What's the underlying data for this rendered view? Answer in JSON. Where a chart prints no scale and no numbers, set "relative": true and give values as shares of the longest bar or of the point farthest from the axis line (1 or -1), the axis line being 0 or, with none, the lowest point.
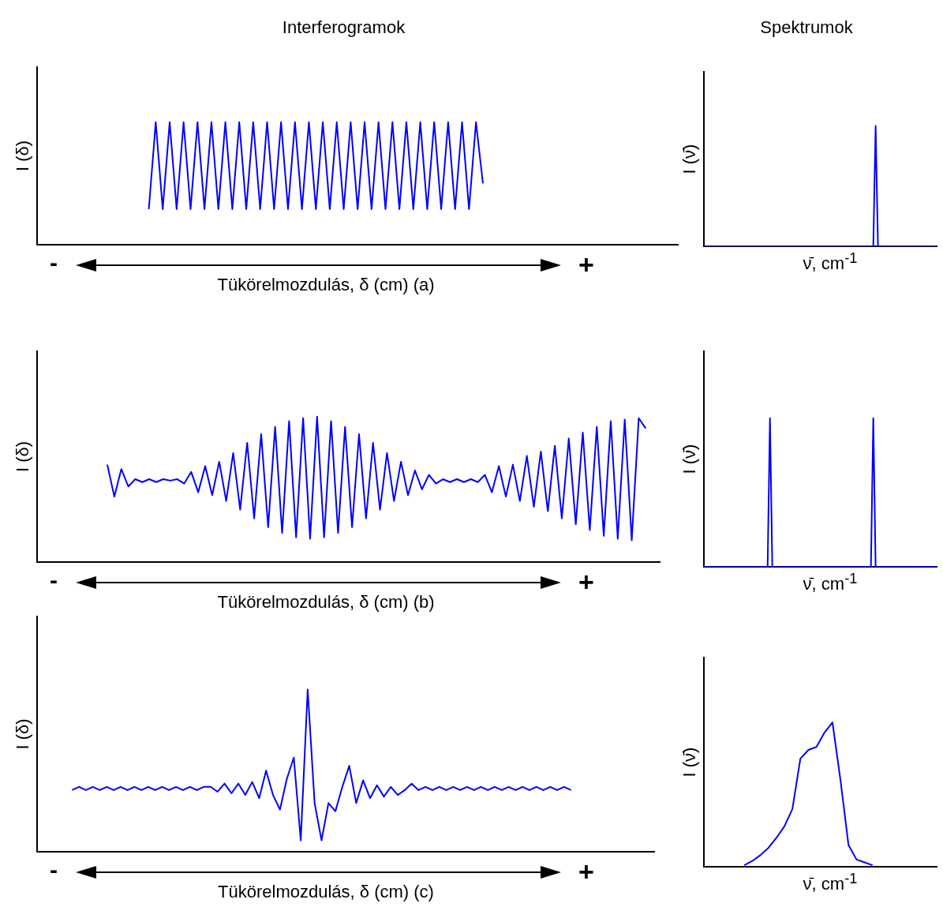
{
  "chart_data": [
    {
      "type": "line",
      "title": "Interferogramok",
      "ylabel": "I (δ)",
      "xlabel": "Tükörelmozdulás, δ (cm) (a)",
      "annotations": [
        "-",
        "+"
      ],
      "relative": true,
      "color": "#0000ff",
      "categories": [
        null,
        null,
        null,
        null,
        null,
        null,
        null,
        null,
        null,
        null,
        null,
        null,
        null,
        null,
        null,
        null,
        null,
        null,
        null,
        null,
        null,
        null,
        null,
        null,
        null,
        null,
        null,
        null,
        null,
        null,
        null,
        null,
        null,
        null,
        null,
        null,
        null,
        null,
        null,
        null,
        null,
        null,
        null,
        null,
        null,
        null,
        null,
        null,
        null,
        null,
        null,
        null,
        null,
        null,
        null,
        null,
        null,
        null,
        null,
        null,
        null,
        null,
        null,
        null,
        null,
        null,
        null,
        null,
        null,
        null,
        null,
        null,
        null,
        null,
        null,
        null,
        null,
        null,
        null,
        null,
        null,
        null,
        null,
        null,
        null,
        null,
        null,
        null,
        null,
        null,
        null,
        null,
        null
      ],
      "values": [
        null,
        null,
        null,
        null,
        null,
        null,
        null,
        null,
        null,
        null,
        null,
        null,
        null,
        null,
        null,
        null,
        0.29,
        1,
        0.29,
        1,
        0.29,
        1,
        0.29,
        1,
        0.29,
        1,
        0.29,
        1,
        0.29,
        1,
        0.29,
        1,
        0.29,
        1,
        0.29,
        1,
        0.29,
        1,
        0.29,
        1,
        0.29,
        1,
        0.29,
        1,
        0.29,
        1,
        0.29,
        1,
        0.29,
        1,
        0.29,
        1,
        0.29,
        1,
        0.29,
        1,
        0.29,
        1,
        0.29,
        1,
        0.29,
        1,
        0.29,
        1,
        0.5,
        null,
        null,
        null,
        null,
        null,
        null,
        null,
        null,
        null,
        null,
        null,
        null,
        null,
        null,
        null,
        null,
        null,
        null,
        null,
        null,
        null,
        null,
        null,
        null,
        null,
        null,
        null,
        null
      ]
    },
    {
      "type": "line",
      "title": "Spektrumok",
      "ylabel": "I (ν̄)",
      "xlabel": "ν̄, cm$^{-1}$",
      "relative": true,
      "color": "#0000ff",
      "categories": [
        null,
        null,
        null,
        null,
        null,
        null,
        null,
        null,
        null,
        null,
        null,
        null,
        null,
        null,
        null,
        null,
        null,
        null,
        null,
        null,
        null,
        null,
        null,
        null,
        null,
        null,
        null,
        null,
        null,
        null,
        null,
        null,
        null,
        null,
        null,
        null,
        null,
        null,
        null,
        null,
        null,
        null,
        null,
        null,
        null,
        null,
        null,
        null,
        null,
        null,
        null,
        null,
        null,
        null,
        null,
        null,
        null,
        null,
        null,
        null,
        null,
        null,
        null,
        null,
        null,
        null,
        null,
        null,
        null,
        null,
        null,
        null,
        null,
        null,
        null,
        null,
        null,
        null,
        null,
        null,
        null,
        null,
        null,
        null,
        null,
        null,
        null,
        null,
        null,
        null,
        null,
        null,
        null,
        null,
        null,
        null,
        null,
        null,
        null,
        null
      ],
      "values": [
        0,
        0,
        0,
        0,
        0,
        0,
        0,
        0,
        0,
        0,
        0,
        0,
        0,
        0,
        0,
        0,
        0,
        0,
        0,
        0,
        0,
        0,
        0,
        0,
        0,
        0,
        0,
        0,
        0,
        0,
        0,
        0,
        0,
        0,
        0,
        0,
        0,
        0,
        0,
        0,
        0,
        0,
        0,
        0,
        0,
        0,
        0,
        0,
        0,
        0,
        0,
        0,
        0,
        0,
        0,
        0,
        0,
        0,
        0,
        0,
        0,
        0,
        0,
        0,
        0,
        0,
        0,
        0,
        0,
        0,
        0,
        0,
        0,
        1,
        0,
        0,
        0,
        0,
        0,
        0,
        0,
        0,
        0,
        0,
        0,
        0,
        0,
        0,
        0,
        0,
        0,
        0,
        0,
        0,
        0,
        0,
        0,
        0,
        0,
        0
      ]
    },
    {
      "type": "line",
      "ylabel": "I (δ)",
      "xlabel": "Tükörelmozdulás, δ (cm) (b)",
      "annotations": [
        "-",
        "+"
      ],
      "relative": true,
      "color": "#0000ff",
      "categories": [
        null,
        null,
        null,
        null,
        null,
        null,
        null,
        null,
        null,
        null,
        null,
        null,
        null,
        null,
        null,
        null,
        null,
        null,
        null,
        null,
        null,
        null,
        null,
        null,
        null,
        null,
        null,
        null,
        null,
        null,
        null,
        null,
        null,
        null,
        null,
        null,
        null,
        null,
        null,
        null,
        null,
        null,
        null,
        null,
        null,
        null,
        null,
        null,
        null,
        null,
        null,
        null,
        null,
        null,
        null,
        null,
        null,
        null,
        null,
        null,
        null,
        null,
        null,
        null,
        null,
        null,
        null,
        null,
        null,
        null,
        null,
        null,
        null,
        null,
        null,
        null,
        null,
        null,
        null,
        null,
        null,
        null,
        null,
        null,
        null,
        null,
        null,
        null,
        null,
        null
      ],
      "values": [
        null,
        null,
        null,
        null,
        null,
        null,
        null,
        null,
        null,
        null,
        0.67,
        0.45,
        0.64,
        0.52,
        0.57,
        0.55,
        0.57,
        0.55,
        0.57,
        0.56,
        0.57,
        0.54,
        0.62,
        0.48,
        0.66,
        0.46,
        0.69,
        0.42,
        0.75,
        0.36,
        0.82,
        0.3,
        0.88,
        0.24,
        0.93,
        0.2,
        0.97,
        0.17,
        0.99,
        0.16,
        1,
        0.17,
        0.97,
        0.2,
        0.93,
        0.24,
        0.88,
        0.3,
        0.82,
        0.36,
        0.75,
        0.42,
        0.69,
        0.46,
        0.63,
        0.5,
        0.6,
        0.54,
        0.57,
        0.55,
        0.57,
        0.55,
        0.57,
        0.55,
        0.6,
        0.48,
        0.66,
        0.45,
        0.67,
        0.42,
        0.73,
        0.38,
        0.76,
        0.35,
        0.8,
        0.3,
        0.85,
        0.26,
        0.89,
        0.22,
        0.93,
        0.18,
        0.97,
        0.16,
        0.98,
        0.15,
        0.99,
        0.92,
        null,
        null
      ]
    },
    {
      "type": "line",
      "ylabel": "I (ν̄)",
      "xlabel": "ν̄, cm$^{-1}$",
      "relative": true,
      "color": "#0000ff",
      "categories": [
        null,
        null,
        null,
        null,
        null,
        null,
        null,
        null,
        null,
        null,
        null,
        null,
        null,
        null,
        null,
        null,
        null,
        null,
        null,
        null,
        null,
        null,
        null,
        null,
        null,
        null,
        null,
        null,
        null,
        null,
        null,
        null,
        null,
        null,
        null,
        null,
        null,
        null,
        null,
        null,
        null,
        null,
        null,
        null,
        null,
        null,
        null,
        null,
        null,
        null,
        null,
        null,
        null,
        null,
        null,
        null,
        null,
        null,
        null,
        null,
        null,
        null,
        null,
        null,
        null,
        null,
        null,
        null,
        null,
        null,
        null,
        null,
        null,
        null,
        null,
        null,
        null,
        null,
        null,
        null,
        null,
        null,
        null,
        null,
        null,
        null,
        null,
        null,
        null,
        null,
        null,
        null,
        null,
        null,
        null,
        null,
        null,
        null,
        null,
        null
      ],
      "values": [
        0,
        0,
        0,
        0,
        0,
        0,
        0,
        0,
        0,
        0,
        0,
        0,
        0,
        0,
        0,
        0,
        0,
        0,
        0,
        0,
        0,
        0,
        0,
        0,
        0,
        0,
        0,
        0,
        1,
        0,
        0,
        0,
        0,
        0,
        0,
        0,
        0,
        0,
        0,
        0,
        0,
        0,
        0,
        0,
        0,
        0,
        0,
        0,
        0,
        0,
        0,
        0,
        0,
        0,
        0,
        0,
        0,
        0,
        0,
        0,
        0,
        0,
        0,
        0,
        0,
        0,
        0,
        0,
        0,
        0,
        0,
        0,
        1,
        0,
        0,
        0,
        0,
        0,
        0,
        0,
        0,
        0,
        0,
        0,
        0,
        0,
        0,
        0,
        0,
        0,
        0,
        0,
        0,
        0,
        0,
        0,
        0,
        0,
        0,
        0
      ]
    },
    {
      "type": "line",
      "ylabel": "I (δ)",
      "xlabel": "Tükörelmozdulás, δ (cm) (c)",
      "annotations": [
        "-",
        "+"
      ],
      "relative": true,
      "color": "#0000ff",
      "categories": [
        null,
        null,
        null,
        null,
        null,
        null,
        null,
        null,
        null,
        null,
        null,
        null,
        null,
        null,
        null,
        null,
        null,
        null,
        null,
        null,
        null,
        null,
        null,
        null,
        null,
        null,
        null,
        null,
        null,
        null,
        null,
        null,
        null,
        null,
        null,
        null,
        null,
        null,
        null,
        null,
        null,
        null,
        null,
        null,
        null,
        null,
        null,
        null,
        null,
        null,
        null,
        null,
        null,
        null,
        null,
        null,
        null,
        null,
        null,
        null,
        null,
        null,
        null,
        null,
        null,
        null,
        null,
        null,
        null,
        null,
        null,
        null,
        null,
        null,
        null,
        null,
        null,
        null,
        null,
        null,
        null,
        null,
        null,
        null,
        null,
        null,
        null,
        null,
        null,
        null
      ],
      "values": [
        null,
        null,
        null,
        null,
        null,
        0.38,
        0.4,
        0.38,
        0.4,
        0.38,
        0.4,
        0.38,
        0.4,
        0.38,
        0.4,
        0.38,
        0.4,
        0.38,
        0.4,
        0.38,
        0.4,
        0.38,
        0.4,
        0.38,
        0.4,
        0.4,
        0.37,
        0.42,
        0.36,
        0.42,
        0.35,
        0.43,
        0.33,
        0.5,
        0.35,
        0.26,
        0.45,
        0.58,
        0.07,
        1,
        0.3,
        0.07,
        0.3,
        0.25,
        0.4,
        0.53,
        0.3,
        0.44,
        0.33,
        0.41,
        0.34,
        0.4,
        0.35,
        0.38,
        0.42,
        0.38,
        0.4,
        0.38,
        0.4,
        0.38,
        0.4,
        0.38,
        0.4,
        0.38,
        0.4,
        0.38,
        0.4,
        0.38,
        0.4,
        0.38,
        0.4,
        0.38,
        0.4,
        0.38,
        0.4,
        0.38,
        0.4,
        0.38,
        null,
        null,
        null,
        null,
        null,
        null,
        null,
        null,
        null,
        null,
        null,
        null
      ]
    },
    {
      "type": "line",
      "ylabel": "I (ν̄)",
      "xlabel": "ν̄, cm$^{-1}$",
      "relative": true,
      "color": "#0000ff",
      "categories": [
        null,
        null,
        null,
        null,
        null,
        null,
        null,
        null,
        null,
        null,
        null,
        null,
        null,
        null,
        null,
        null,
        null,
        null,
        null,
        null,
        null,
        null,
        null,
        null,
        null,
        null,
        null,
        null,
        null,
        null
      ],
      "values": [
        null,
        null,
        null,
        null,
        null,
        0.01,
        0.04,
        0.08,
        0.13,
        0.2,
        0.28,
        0.4,
        0.75,
        0.81,
        0.83,
        0.93,
        1,
        0.6,
        0.15,
        0.05,
        0.03,
        0.01,
        null,
        null,
        null,
        null,
        null,
        null,
        null,
        null
      ]
    }
  ]
}
